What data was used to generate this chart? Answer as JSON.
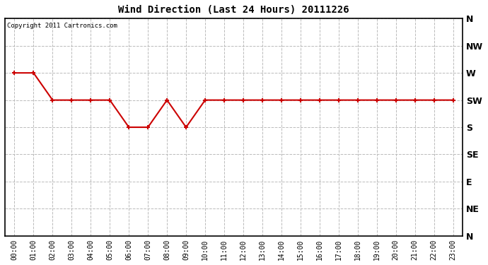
{
  "title": "Wind Direction (Last 24 Hours) 20111226",
  "copyright_text": "Copyright 2011 Cartronics.com",
  "line_color": "#cc0000",
  "marker": "+",
  "marker_size": 5,
  "marker_linewidth": 1.5,
  "line_width": 1.5,
  "background_color": "#ffffff",
  "grid_color": "#bbbbbb",
  "x_labels": [
    "00:00",
    "01:00",
    "02:00",
    "03:00",
    "04:00",
    "05:00",
    "06:00",
    "07:00",
    "08:00",
    "09:00",
    "10:00",
    "11:00",
    "12:00",
    "13:00",
    "14:00",
    "15:00",
    "16:00",
    "17:00",
    "18:00",
    "19:00",
    "20:00",
    "21:00",
    "22:00",
    "23:00"
  ],
  "y_labels": [
    "N",
    "NW",
    "W",
    "SW",
    "S",
    "SE",
    "E",
    "NE",
    "N"
  ],
  "y_values": [
    8,
    7,
    6,
    5,
    4,
    3,
    2,
    1,
    0
  ],
  "data_points": [
    6,
    6,
    5,
    5,
    5,
    5,
    4,
    4,
    5,
    4,
    5,
    5,
    5,
    5,
    5,
    5,
    5,
    5,
    5,
    5,
    5,
    5,
    5,
    5
  ]
}
